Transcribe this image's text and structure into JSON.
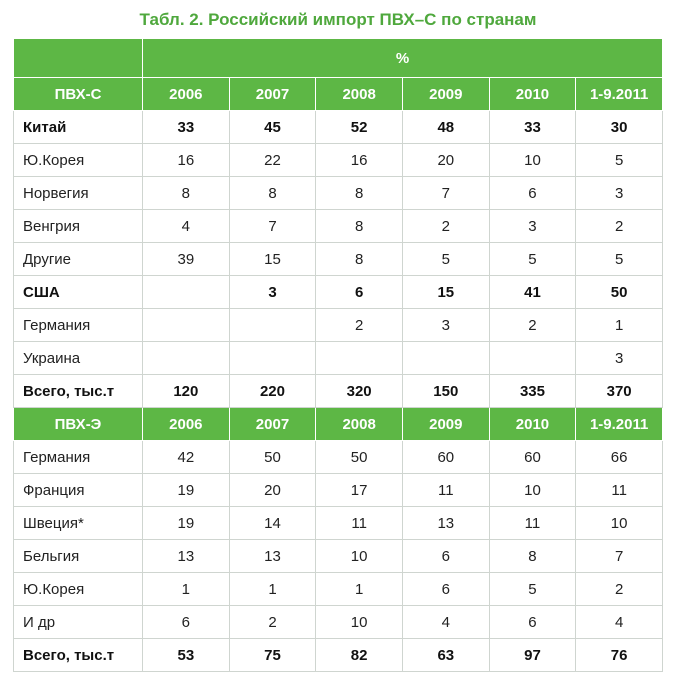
{
  "title": "Табл. 2. Российский импорт ПВХ–С по странам",
  "percent_header": "%",
  "sections": [
    {
      "header": [
        "ПВХ-С",
        "2006",
        "2007",
        "2008",
        "2009",
        "2010",
        "1-9.2011"
      ],
      "rows": [
        {
          "cells": [
            "Китай",
            "33",
            "45",
            "52",
            "48",
            "33",
            "30"
          ],
          "bold": true
        },
        {
          "cells": [
            "Ю.Корея",
            "16",
            "22",
            "16",
            "20",
            "10",
            "5"
          ],
          "bold": false
        },
        {
          "cells": [
            "Норвегия",
            "8",
            "8",
            "8",
            "7",
            "6",
            "3"
          ],
          "bold": false
        },
        {
          "cells": [
            "Венгрия",
            "4",
            "7",
            "8",
            "2",
            "3",
            "2"
          ],
          "bold": false
        },
        {
          "cells": [
            "Другие",
            "39",
            "15",
            "8",
            "5",
            "5",
            "5"
          ],
          "bold": false
        },
        {
          "cells": [
            "США",
            "",
            "3",
            "6",
            "15",
            "41",
            "50"
          ],
          "bold": true
        },
        {
          "cells": [
            "Германия",
            "",
            "",
            "2",
            "3",
            "2",
            "1"
          ],
          "bold": false
        },
        {
          "cells": [
            "Украина",
            "",
            "",
            "",
            "",
            "",
            "3"
          ],
          "bold": false
        },
        {
          "cells": [
            "Всего, тыс.т",
            "120",
            "220",
            "320",
            "150",
            "335",
            "370"
          ],
          "bold": true
        }
      ]
    },
    {
      "header": [
        "ПВХ-Э",
        "2006",
        "2007",
        "2008",
        "2009",
        "2010",
        "1-9.2011"
      ],
      "rows": [
        {
          "cells": [
            "Германия",
            "42",
            "50",
            "50",
            "60",
            "60",
            "66"
          ],
          "bold": false
        },
        {
          "cells": [
            "Франция",
            "19",
            "20",
            "17",
            "11",
            "10",
            "11"
          ],
          "bold": false
        },
        {
          "cells": [
            "Швеция*",
            "19",
            "14",
            "11",
            "13",
            "11",
            "10"
          ],
          "bold": false
        },
        {
          "cells": [
            "Бельгия",
            "13",
            "13",
            "10",
            "6",
            "8",
            "7"
          ],
          "bold": false
        },
        {
          "cells": [
            "Ю.Корея",
            "1",
            "1",
            "1",
            "6",
            "5",
            "2"
          ],
          "bold": false
        },
        {
          "cells": [
            "И др",
            "6",
            "2",
            "10",
            "4",
            "6",
            "4"
          ],
          "bold": false
        },
        {
          "cells": [
            "Всего, тыс.т",
            "53",
            "75",
            "82",
            "63",
            "97",
            "76"
          ],
          "bold": true
        }
      ]
    }
  ]
}
